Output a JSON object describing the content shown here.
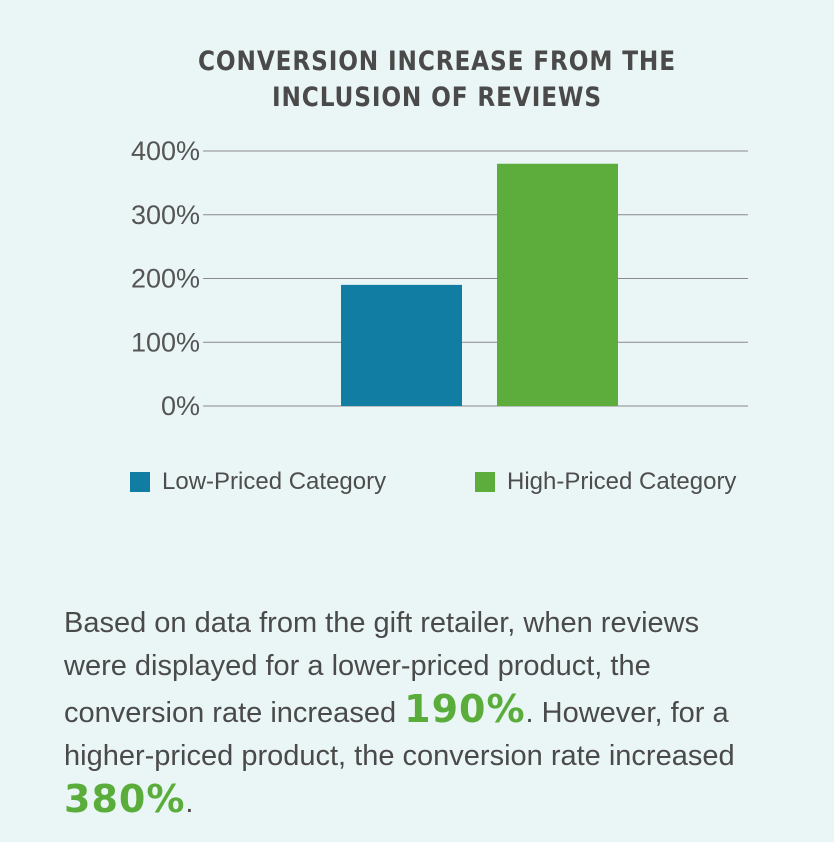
{
  "title_lines": [
    "CONVERSION INCREASE FROM THE",
    "INCLUSION OF REVIEWS"
  ],
  "chart_data": {
    "type": "bar",
    "title": "CONVERSION INCREASE FROM THE INCLUSION OF REVIEWS",
    "categories": [
      "Low-Priced Category",
      "High-Priced Category"
    ],
    "values": [
      190,
      380
    ],
    "colors": [
      "#127da3",
      "#5dad3c"
    ],
    "ylim": [
      0,
      400
    ],
    "yticks": [
      0,
      100,
      200,
      300,
      400
    ],
    "ytick_labels": [
      "0%",
      "100%",
      "200%",
      "300%",
      "400%"
    ],
    "xlabel": "",
    "ylabel": "",
    "grid": true,
    "legend_position": "bottom"
  },
  "legend": [
    {
      "label": "Low-Priced Category",
      "color": "#127da3"
    },
    {
      "label": "High-Priced Category",
      "color": "#5dad3c"
    }
  ],
  "description": {
    "part1": "Based on data from the gift retailer, when reviews were displayed for a lower-priced product, the conversion rate increased ",
    "value1": "190%",
    "part2": ". However, for a higher-priced product, the conversion rate increased ",
    "value2": "380%",
    "part3": "."
  }
}
